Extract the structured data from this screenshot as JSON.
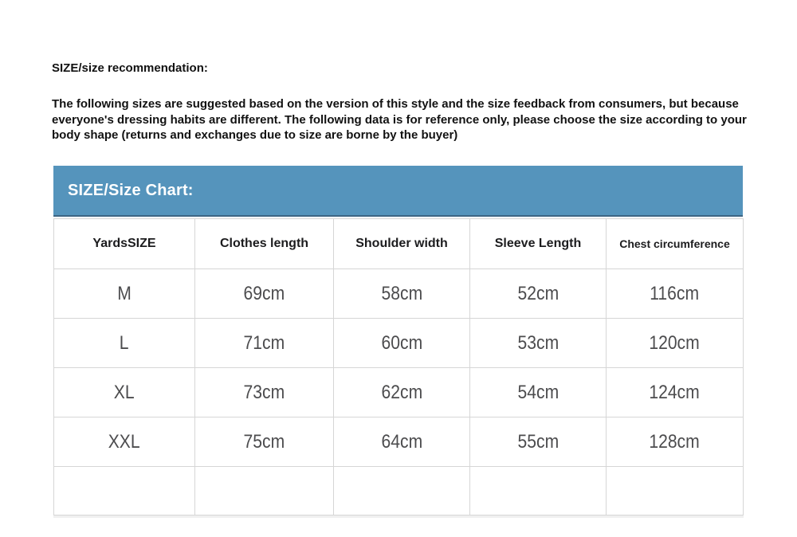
{
  "page": {
    "heading": "SIZE/size recommendation:",
    "paragraph": "The following sizes are suggested based on the version of this style and the size feedback from consumers, but because everyone's dressing habits are different. The following data is for reference only, please choose the size according to your body shape (returns and exchanges due to size are borne by the buyer)"
  },
  "size_chart": {
    "title": "SIZE/Size Chart:",
    "title_bar_color": "#5594bc",
    "columns": [
      "YardsSIZE",
      "Clothes length",
      "Shoulder width",
      "Sleeve Length",
      "Chest circumference"
    ],
    "rows": [
      [
        "M",
        "69cm",
        "58cm",
        "52cm",
        "116cm"
      ],
      [
        "L",
        "71cm",
        "60cm",
        "53cm",
        "120cm"
      ],
      [
        "XL",
        "73cm",
        "62cm",
        "54cm",
        "124cm"
      ],
      [
        "XXL",
        "75cm",
        "64cm",
        "55cm",
        "128cm"
      ],
      [
        "",
        "",
        "",
        "",
        ""
      ]
    ]
  }
}
